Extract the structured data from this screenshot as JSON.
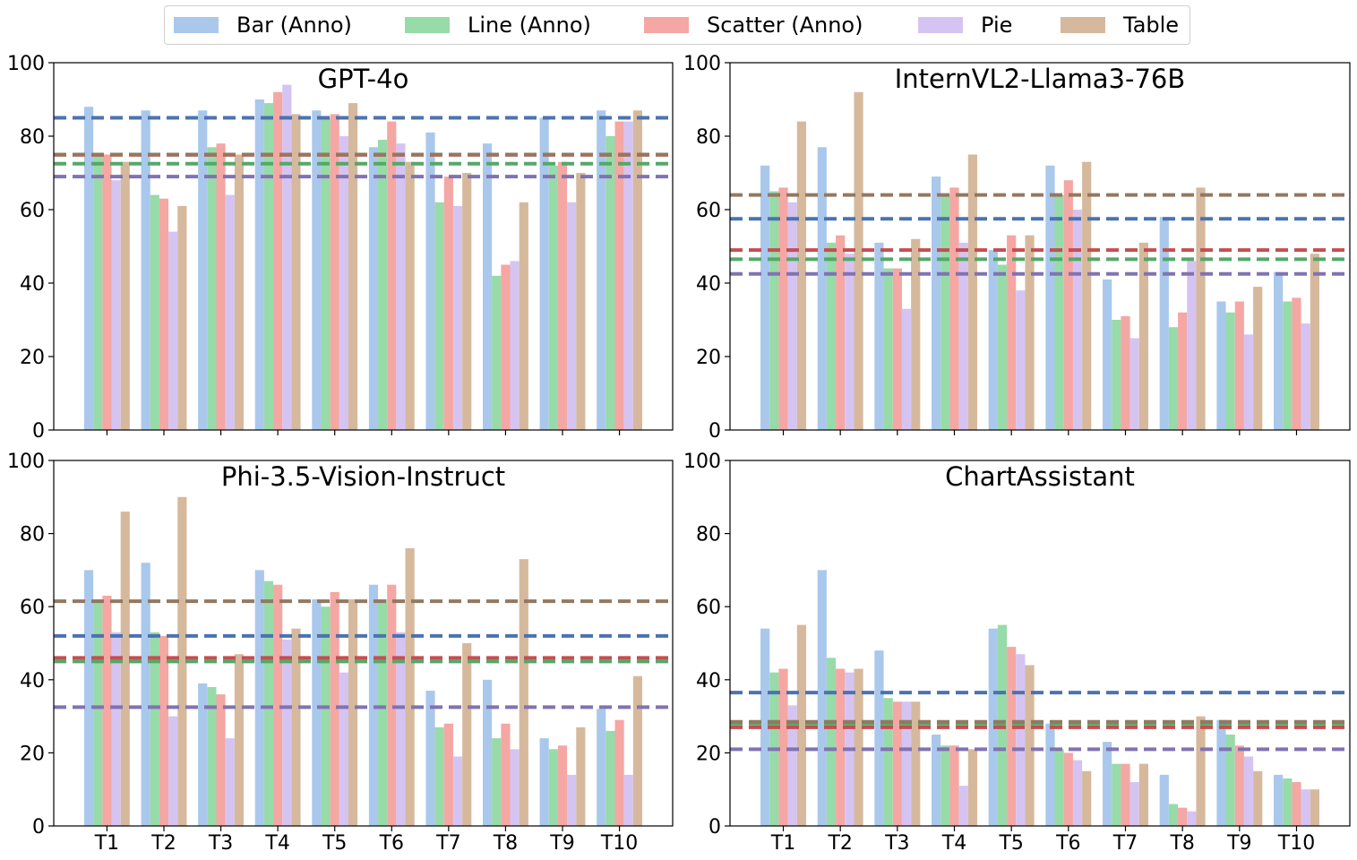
{
  "legend": {
    "items": [
      {
        "label": "Bar (Anno)",
        "color": "#a9c8ec"
      },
      {
        "label": "Line (Anno)",
        "color": "#97dba8"
      },
      {
        "label": "Scatter (Anno)",
        "color": "#f4a7a3"
      },
      {
        "label": "Pie",
        "color": "#d5c4f2"
      },
      {
        "label": "Table",
        "color": "#d6b99c"
      }
    ]
  },
  "chart_data": [
    {
      "type": "bar",
      "title": "GPT-4o",
      "categories": [
        "T1",
        "T2",
        "T3",
        "T4",
        "T5",
        "T6",
        "T7",
        "T8",
        "T9",
        "T10"
      ],
      "ylim": [
        0,
        100
      ],
      "yticks": [
        0,
        20,
        40,
        60,
        80,
        100
      ],
      "grid": false,
      "series": [
        {
          "name": "Bar (Anno)",
          "color": "#a9c8ec",
          "values": [
            88,
            87,
            87,
            90,
            87,
            77,
            81,
            78,
            85,
            87
          ]
        },
        {
          "name": "Line (Anno)",
          "color": "#97dba8",
          "values": [
            75,
            64,
            77,
            89,
            85,
            79,
            62,
            42,
            72,
            80
          ]
        },
        {
          "name": "Scatter (Anno)",
          "color": "#f4a7a3",
          "values": [
            75,
            63,
            78,
            92,
            86,
            84,
            69,
            45,
            73,
            84
          ]
        },
        {
          "name": "Pie",
          "color": "#d5c4f2",
          "values": [
            68,
            54,
            64,
            94,
            80,
            78,
            61,
            46,
            62,
            84
          ]
        },
        {
          "name": "Table",
          "color": "#d6b99c",
          "values": [
            73,
            61,
            75,
            86,
            89,
            73,
            70,
            62,
            70,
            87
          ]
        }
      ],
      "averages": [
        {
          "series": "Bar (Anno)",
          "value": 85,
          "color": "#4c72b0"
        },
        {
          "series": "Line (Anno)",
          "value": 72.5,
          "color": "#55a868"
        },
        {
          "series": "Scatter (Anno)",
          "value": 74.9,
          "color": "#c44e52"
        },
        {
          "series": "Pie",
          "value": 69,
          "color": "#8172b3"
        },
        {
          "series": "Table",
          "value": 75,
          "color": "#937860"
        }
      ]
    },
    {
      "type": "bar",
      "title": "InternVL2-Llama3-76B",
      "categories": [
        "T1",
        "T2",
        "T3",
        "T4",
        "T5",
        "T6",
        "T7",
        "T8",
        "T9",
        "T10"
      ],
      "ylim": [
        0,
        100
      ],
      "yticks": [
        0,
        20,
        40,
        60,
        80,
        100
      ],
      "grid": false,
      "series": [
        {
          "name": "Bar (Anno)",
          "color": "#a9c8ec",
          "values": [
            72,
            77,
            51,
            69,
            49,
            72,
            41,
            58,
            35,
            43
          ]
        },
        {
          "name": "Line (Anno)",
          "color": "#97dba8",
          "values": [
            65,
            51,
            44,
            64,
            45,
            64,
            30,
            28,
            32,
            35
          ]
        },
        {
          "name": "Scatter (Anno)",
          "color": "#f4a7a3",
          "values": [
            66,
            53,
            44,
            66,
            53,
            68,
            31,
            32,
            35,
            36
          ]
        },
        {
          "name": "Pie",
          "color": "#d5c4f2",
          "values": [
            62,
            48,
            33,
            51,
            38,
            60,
            25,
            46,
            26,
            29
          ]
        },
        {
          "name": "Table",
          "color": "#d6b99c",
          "values": [
            84,
            92,
            52,
            75,
            53,
            73,
            51,
            66,
            39,
            48
          ]
        }
      ],
      "averages": [
        {
          "series": "Bar (Anno)",
          "value": 57.5,
          "color": "#4c72b0"
        },
        {
          "series": "Line (Anno)",
          "value": 46.5,
          "color": "#55a868"
        },
        {
          "series": "Scatter (Anno)",
          "value": 49,
          "color": "#c44e52"
        },
        {
          "series": "Pie",
          "value": 42.5,
          "color": "#8172b3"
        },
        {
          "series": "Table",
          "value": 64,
          "color": "#937860"
        }
      ]
    },
    {
      "type": "bar",
      "title": "Phi-3.5-Vision-Instruct",
      "categories": [
        "T1",
        "T2",
        "T3",
        "T4",
        "T5",
        "T6",
        "T7",
        "T8",
        "T9",
        "T10"
      ],
      "ylim": [
        0,
        100
      ],
      "yticks": [
        0,
        20,
        40,
        60,
        80,
        100
      ],
      "grid": false,
      "series": [
        {
          "name": "Bar (Anno)",
          "color": "#a9c8ec",
          "values": [
            70,
            72,
            39,
            70,
            62,
            66,
            37,
            40,
            24,
            32
          ]
        },
        {
          "name": "Line (Anno)",
          "color": "#97dba8",
          "values": [
            62,
            53,
            38,
            67,
            60,
            62,
            27,
            24,
            21,
            26
          ]
        },
        {
          "name": "Scatter (Anno)",
          "color": "#f4a7a3",
          "values": [
            63,
            52,
            36,
            66,
            64,
            66,
            28,
            28,
            22,
            29
          ]
        },
        {
          "name": "Pie",
          "color": "#d5c4f2",
          "values": [
            53,
            30,
            24,
            51,
            42,
            53,
            19,
            21,
            14,
            14
          ]
        },
        {
          "name": "Table",
          "color": "#d6b99c",
          "values": [
            86,
            90,
            47,
            54,
            62,
            76,
            50,
            73,
            27,
            41
          ]
        }
      ],
      "averages": [
        {
          "series": "Bar (Anno)",
          "value": 52,
          "color": "#4c72b0"
        },
        {
          "series": "Line (Anno)",
          "value": 45,
          "color": "#55a868"
        },
        {
          "series": "Scatter (Anno)",
          "value": 46,
          "color": "#c44e52"
        },
        {
          "series": "Pie",
          "value": 32.5,
          "color": "#8172b3"
        },
        {
          "series": "Table",
          "value": 61.5,
          "color": "#937860"
        }
      ]
    },
    {
      "type": "bar",
      "title": "ChartAssistant",
      "categories": [
        "T1",
        "T2",
        "T3",
        "T4",
        "T5",
        "T6",
        "T7",
        "T8",
        "T9",
        "T10"
      ],
      "ylim": [
        0,
        100
      ],
      "yticks": [
        0,
        20,
        40,
        60,
        80,
        100
      ],
      "grid": false,
      "series": [
        {
          "name": "Bar (Anno)",
          "color": "#a9c8ec",
          "values": [
            54,
            70,
            48,
            25,
            54,
            28,
            23,
            14,
            29,
            14
          ]
        },
        {
          "name": "Line (Anno)",
          "color": "#97dba8",
          "values": [
            42,
            46,
            35,
            22,
            55,
            21,
            17,
            6,
            25,
            13
          ]
        },
        {
          "name": "Scatter (Anno)",
          "color": "#f4a7a3",
          "values": [
            43,
            43,
            34,
            22,
            49,
            20,
            17,
            5,
            22,
            12
          ]
        },
        {
          "name": "Pie",
          "color": "#d5c4f2",
          "values": [
            33,
            42,
            34,
            11,
            47,
            18,
            12,
            4,
            19,
            10
          ]
        },
        {
          "name": "Table",
          "color": "#d6b99c",
          "values": [
            55,
            43,
            34,
            21,
            44,
            15,
            17,
            30,
            15,
            10
          ]
        }
      ],
      "averages": [
        {
          "series": "Bar (Anno)",
          "value": 36.5,
          "color": "#4c72b0"
        },
        {
          "series": "Line (Anno)",
          "value": 28,
          "color": "#55a868"
        },
        {
          "series": "Scatter (Anno)",
          "value": 27,
          "color": "#c44e52"
        },
        {
          "series": "Pie",
          "value": 21,
          "color": "#8172b3"
        },
        {
          "series": "Table",
          "value": 28.5,
          "color": "#937860"
        }
      ]
    }
  ]
}
